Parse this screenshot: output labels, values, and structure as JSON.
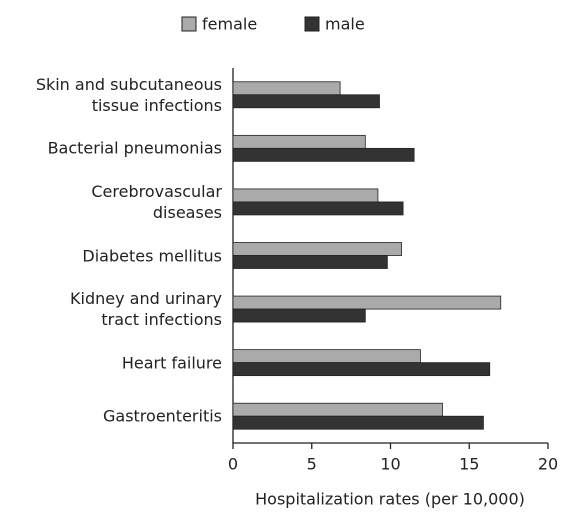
{
  "chart_data": {
    "type": "bar",
    "orientation": "horizontal",
    "x_label": "Hospitalization rates (per 10,000)",
    "categories": [
      "Skin and subcutaneous\ntissue infections",
      "Bacterial pneumonias",
      "Cerebrovascular\ndiseases",
      "Diabetes mellitus",
      "Kidney and urinary\ntract infections",
      "Heart failure",
      "Gastroenteritis"
    ],
    "series": [
      {
        "name": "female",
        "color": "#aaaaaa",
        "values": [
          6.8,
          8.4,
          9.2,
          10.7,
          17.0,
          11.9,
          13.3
        ]
      },
      {
        "name": "male",
        "color": "#333333",
        "values": [
          9.3,
          11.5,
          10.8,
          9.8,
          8.4,
          16.3,
          15.9
        ]
      }
    ],
    "xlim": [
      0,
      20
    ],
    "xticks": [
      0,
      5,
      10,
      15,
      20
    ],
    "legend": "top"
  }
}
